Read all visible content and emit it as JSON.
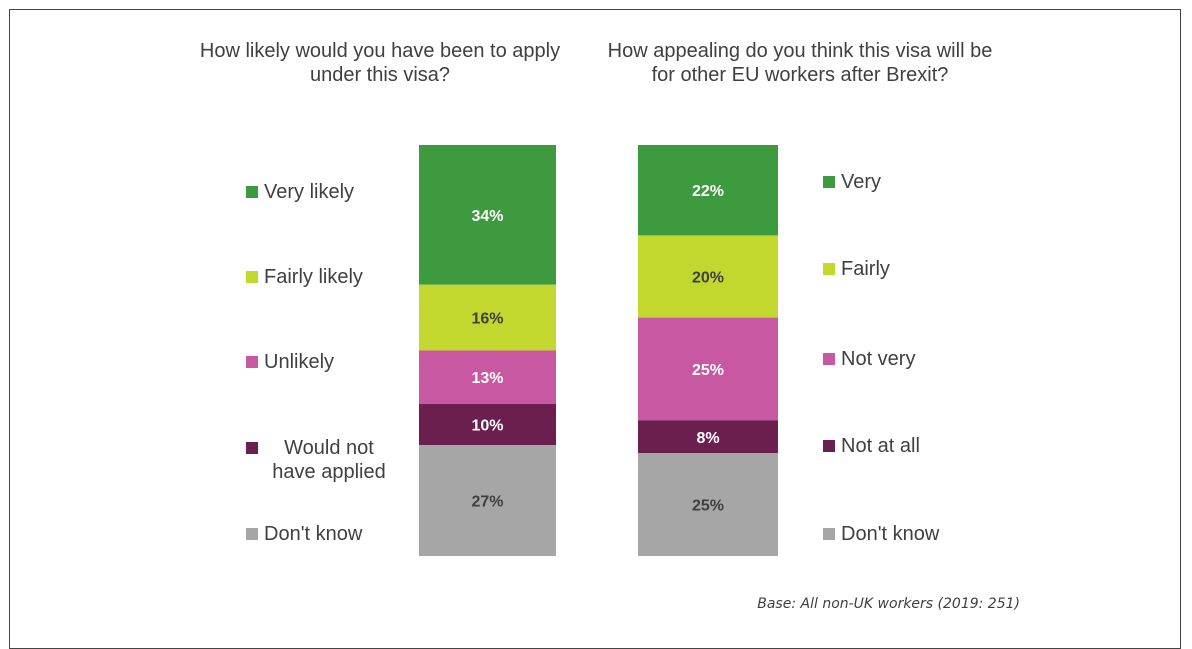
{
  "chart_data": [
    {
      "type": "bar",
      "stacked": true,
      "orientation": "vertical",
      "title": "How likely would you have been to apply under this visa?",
      "legend_placement": "left",
      "series": [
        {
          "name": "Very likely",
          "value": 34,
          "label": "34%",
          "color": "#3d9a3f"
        },
        {
          "name": "Fairly likely",
          "value": 16,
          "label": "16%",
          "color": "#c2d82e"
        },
        {
          "name": "Unlikely",
          "value": 13,
          "label": "13%",
          "color": "#c858a2"
        },
        {
          "name": "Would not have applied",
          "value": 10,
          "label": "10%",
          "color": "#6b1f4e"
        },
        {
          "name": "Don't know",
          "value": 27,
          "label": "27%",
          "color": "#a6a6a6"
        }
      ]
    },
    {
      "type": "bar",
      "stacked": true,
      "orientation": "vertical",
      "title": "How appealing do you think this visa will be for other EU workers after Brexit?",
      "legend_placement": "right",
      "series": [
        {
          "name": "Very",
          "value": 22,
          "label": "22%",
          "color": "#3d9a3f"
        },
        {
          "name": "Fairly",
          "value": 20,
          "label": "20%",
          "color": "#c2d82e"
        },
        {
          "name": "Not very",
          "value": 25,
          "label": "25%",
          "color": "#c858a2"
        },
        {
          "name": "Not at all",
          "value": 8,
          "label": "8%",
          "color": "#6b1f4e"
        },
        {
          "name": "Don't know",
          "value": 25,
          "label": "25%",
          "color": "#a6a6a6"
        }
      ]
    }
  ],
  "legend_left": {
    "very": "Very likely",
    "fairly": "Fairly likely",
    "unlikely": "Unlikely",
    "not_applied": "Would not\nhave applied",
    "dont_know": "Don't know"
  },
  "legend_right": {
    "very": "Very",
    "fairly": "Fairly",
    "not_very": "Not very",
    "not_at_all": "Not at all",
    "dont_know": "Don't know"
  },
  "colors": {
    "very": "#3d9a3f",
    "fairly": "#c2d82e",
    "not_very": "#c858a2",
    "not_at_all": "#6b1f4e",
    "dont_know": "#a6a6a6",
    "label_light": "#ffffff",
    "label_dark": "#404040"
  },
  "footnote": "Base: All non-UK workers (2019: 251)"
}
